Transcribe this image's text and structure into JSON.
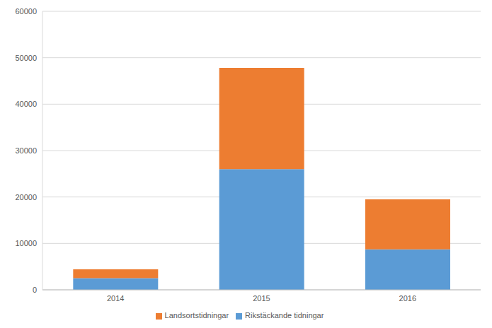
{
  "chart_data": {
    "type": "bar",
    "categories": [
      "2014",
      "2015",
      "2016"
    ],
    "series": [
      {
        "name": "Rikstäckande tidningar",
        "color": "#5b9bd5",
        "values": [
          2500,
          26000,
          8700
        ]
      },
      {
        "name": "Landsortstidningar",
        "color": "#ed7d31",
        "values": [
          1900,
          21800,
          10800
        ]
      }
    ],
    "ylim": [
      0,
      60000
    ],
    "yticks": [
      0,
      10000,
      20000,
      30000,
      40000,
      50000,
      60000
    ],
    "grid": true,
    "stacked": true,
    "legend": "bottom"
  }
}
